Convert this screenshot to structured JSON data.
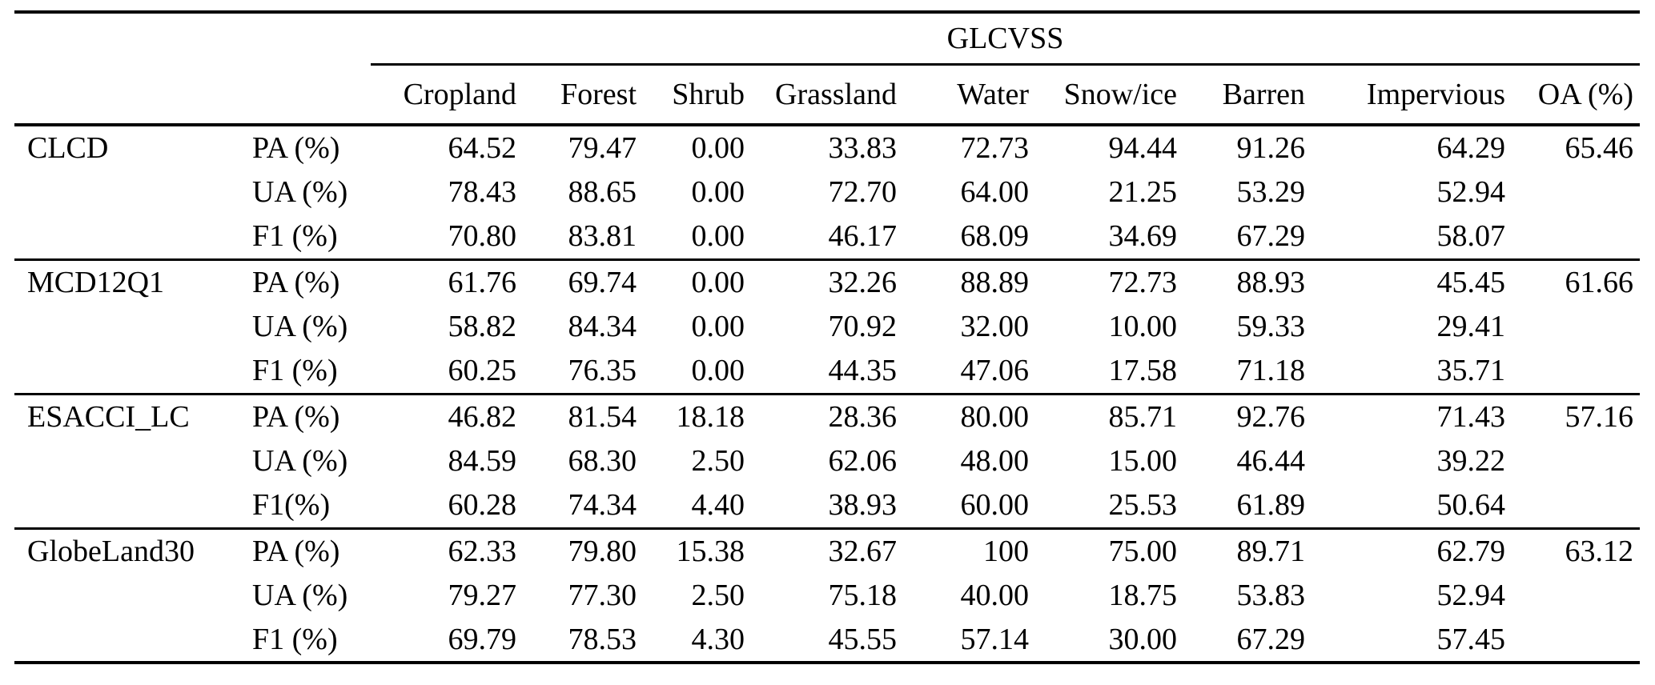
{
  "colors": {
    "background": "#ffffff",
    "text": "#000000",
    "rule": "#000000"
  },
  "table": {
    "group_header": "GLCVSS",
    "columns": [
      "Cropland",
      "Forest",
      "Shrub",
      "Grassland",
      "Water",
      "Snow/ice",
      "Barren",
      "Impervious",
      "OA (%)"
    ],
    "groups": [
      {
        "name": "CLCD",
        "rows": [
          {
            "metric": "PA (%)",
            "values": [
              "64.52",
              "79.47",
              "0.00",
              "33.83",
              "72.73",
              "94.44",
              "91.26",
              "64.29"
            ],
            "oa": "65.46"
          },
          {
            "metric": "UA (%)",
            "values": [
              "78.43",
              "88.65",
              "0.00",
              "72.70",
              "64.00",
              "21.25",
              "53.29",
              "52.94"
            ],
            "oa": ""
          },
          {
            "metric": "F1 (%)",
            "values": [
              "70.80",
              "83.81",
              "0.00",
              "46.17",
              "68.09",
              "34.69",
              "67.29",
              "58.07"
            ],
            "oa": ""
          }
        ]
      },
      {
        "name": "MCD12Q1",
        "rows": [
          {
            "metric": "PA (%)",
            "values": [
              "61.76",
              "69.74",
              "0.00",
              "32.26",
              "88.89",
              "72.73",
              "88.93",
              "45.45"
            ],
            "oa": "61.66"
          },
          {
            "metric": "UA (%)",
            "values": [
              "58.82",
              "84.34",
              "0.00",
              "70.92",
              "32.00",
              "10.00",
              "59.33",
              "29.41"
            ],
            "oa": ""
          },
          {
            "metric": "F1 (%)",
            "values": [
              "60.25",
              "76.35",
              "0.00",
              "44.35",
              "47.06",
              "17.58",
              "71.18",
              "35.71"
            ],
            "oa": ""
          }
        ]
      },
      {
        "name": "ESACCI_LC",
        "rows": [
          {
            "metric": "PA (%)",
            "values": [
              "46.82",
              "81.54",
              "18.18",
              "28.36",
              "80.00",
              "85.71",
              "92.76",
              "71.43"
            ],
            "oa": "57.16"
          },
          {
            "metric": "UA (%)",
            "values": [
              "84.59",
              "68.30",
              "2.50",
              "62.06",
              "48.00",
              "15.00",
              "46.44",
              "39.22"
            ],
            "oa": ""
          },
          {
            "metric": "F1(%)",
            "values": [
              "60.28",
              "74.34",
              "4.40",
              "38.93",
              "60.00",
              "25.53",
              "61.89",
              "50.64"
            ],
            "oa": ""
          }
        ]
      },
      {
        "name": "GlobeLand30",
        "rows": [
          {
            "metric": "PA (%)",
            "values": [
              "62.33",
              "79.80",
              "15.38",
              "32.67",
              "100",
              "75.00",
              "89.71",
              "62.79"
            ],
            "oa": "63.12"
          },
          {
            "metric": "UA (%)",
            "values": [
              "79.27",
              "77.30",
              "2.50",
              "75.18",
              "40.00",
              "18.75",
              "53.83",
              "52.94"
            ],
            "oa": ""
          },
          {
            "metric": "F1 (%)",
            "values": [
              "69.79",
              "78.53",
              "4.30",
              "45.55",
              "57.14",
              "30.00",
              "67.29",
              "57.45"
            ],
            "oa": ""
          }
        ]
      }
    ]
  }
}
